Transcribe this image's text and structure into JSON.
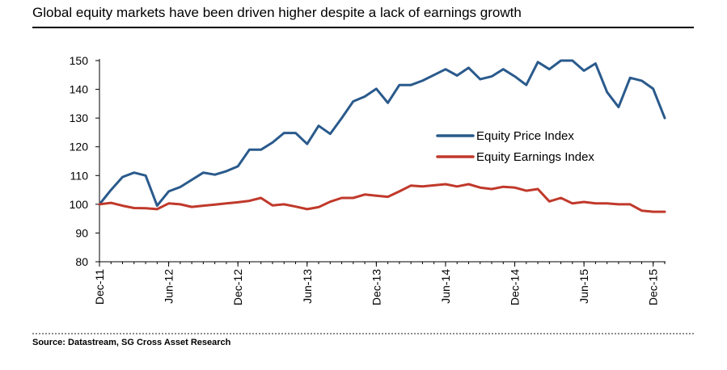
{
  "title": "Global equity markets have been driven higher despite a lack of earnings growth",
  "source": "Source: Datastream, SG Cross Asset Research",
  "chart_data": {
    "type": "line",
    "title": "Global equity markets have been driven higher despite a lack of earnings growth",
    "ylim": [
      80,
      150
    ],
    "yticks": [
      80,
      90,
      100,
      110,
      120,
      130,
      140,
      150
    ],
    "xlim": [
      0,
      49
    ],
    "xticks": [
      {
        "label": "Dec-11",
        "x": 0
      },
      {
        "label": "Jun-12",
        "x": 6
      },
      {
        "label": "Dec-12",
        "x": 12
      },
      {
        "label": "Jun-13",
        "x": 18
      },
      {
        "label": "Dec-13",
        "x": 24
      },
      {
        "label": "Jun-14",
        "x": 30
      },
      {
        "label": "Dec-14",
        "x": 36
      },
      {
        "label": "Jun-15",
        "x": 42
      },
      {
        "label": "Dec-15",
        "x": 48
      }
    ],
    "grid": false,
    "legend_position": "center-right",
    "series": [
      {
        "name": "Equity Price Index",
        "color": "#2a5a8c",
        "x": [
          0,
          1,
          2,
          3,
          4,
          5,
          6,
          7,
          8,
          9,
          10,
          11,
          12,
          13,
          14,
          15,
          16,
          17,
          18,
          19,
          20,
          21,
          22,
          23,
          24,
          25,
          26,
          27,
          28,
          29,
          30,
          31,
          32,
          33,
          34,
          35,
          36,
          37,
          38,
          39,
          40,
          41,
          42,
          43,
          44,
          45,
          46,
          47,
          48,
          49
        ],
        "values": [
          100,
          105,
          109.5,
          111,
          110,
          99.5,
          104.5,
          106,
          108.5,
          111,
          110.3,
          111.5,
          113.2,
          119,
          119,
          121.5,
          124.8,
          124.8,
          121,
          127.3,
          124.5,
          130,
          135.8,
          137.5,
          140.2,
          135.3,
          141.5,
          141.5,
          143,
          145,
          147,
          144.8,
          147.5,
          143.5,
          144.5,
          147,
          144.5,
          141.5,
          149.5,
          147,
          150,
          150,
          146.5,
          149,
          139,
          133.8,
          144,
          143,
          140.2,
          130
        ]
      },
      {
        "name": "Equity Earnings Index",
        "color": "#c0392b",
        "x": [
          0,
          1,
          2,
          3,
          4,
          5,
          6,
          7,
          8,
          9,
          10,
          11,
          12,
          13,
          14,
          15,
          16,
          17,
          18,
          19,
          20,
          21,
          22,
          23,
          24,
          25,
          26,
          27,
          28,
          29,
          30,
          31,
          32,
          33,
          34,
          35,
          36,
          37,
          38,
          39,
          40,
          41,
          42,
          43,
          44,
          45,
          46,
          47,
          48,
          49
        ],
        "values": [
          100,
          100.5,
          99.5,
          98.7,
          98.6,
          98.3,
          100.3,
          100,
          99.1,
          99.5,
          99.9,
          100.3,
          100.7,
          101.2,
          102.2,
          99.6,
          100,
          99.2,
          98.3,
          99,
          100.9,
          102.2,
          102.2,
          103.4,
          103,
          102.6,
          104.5,
          106.5,
          106.2,
          106.6,
          107,
          106.2,
          107,
          105.8,
          105.3,
          106.1,
          105.8,
          104.7,
          105.3,
          101,
          102.2,
          100.3,
          100.8,
          100.3,
          100.3,
          100,
          100,
          97.8,
          97.4,
          97.4
        ]
      }
    ]
  }
}
